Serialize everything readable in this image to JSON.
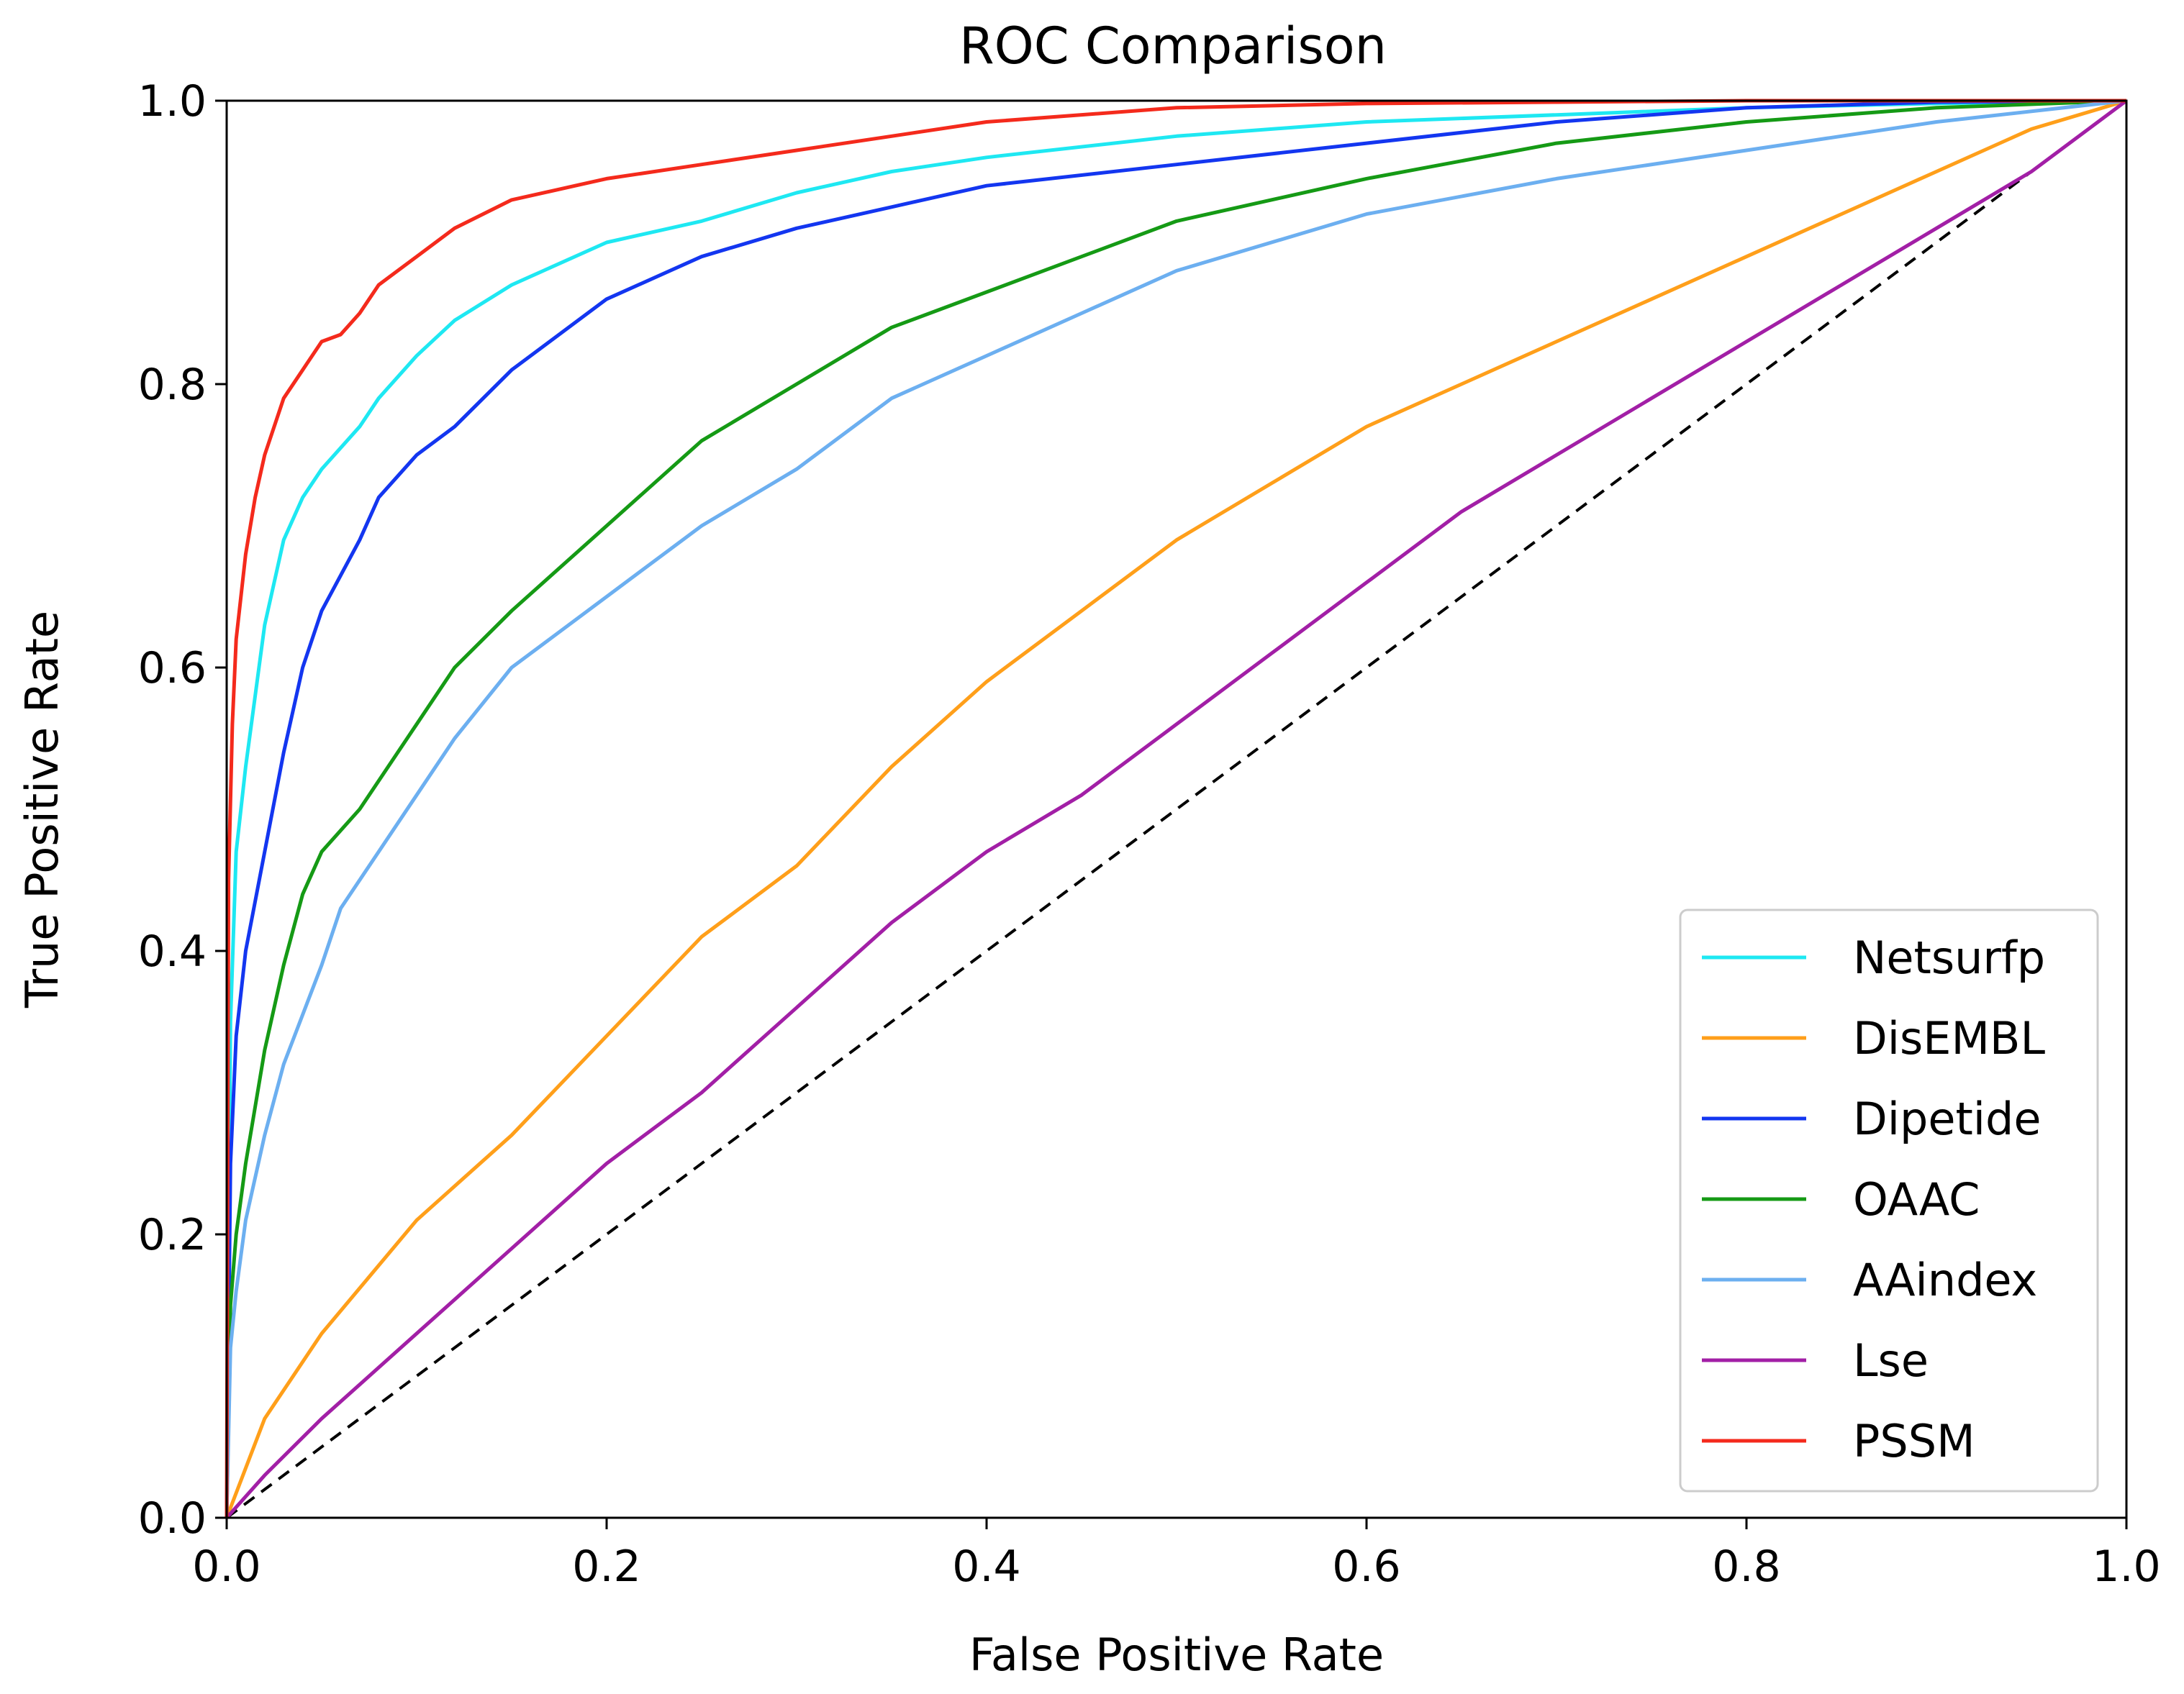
{
  "chart_data": {
    "type": "line",
    "title": "ROC Comparison",
    "xlabel": "False Positive Rate",
    "ylabel": "True Positive Rate",
    "xlim": [
      0,
      1
    ],
    "ylim": [
      0,
      1
    ],
    "xticks": [
      "0.0",
      "0.2",
      "0.4",
      "0.6",
      "0.8",
      "1.0"
    ],
    "yticks": [
      "0.0",
      "0.2",
      "0.4",
      "0.6",
      "0.8",
      "1.0"
    ],
    "grid": false,
    "legend_position": "lower-right",
    "diagonal": {
      "x": [
        0,
        1
      ],
      "y": [
        0,
        1
      ],
      "style": "dashed",
      "color": "#000000"
    },
    "series": [
      {
        "name": "Netsurfp",
        "color": "#1ee8f2",
        "x": [
          0,
          0.002,
          0.005,
          0.01,
          0.015,
          0.02,
          0.03,
          0.04,
          0.05,
          0.07,
          0.08,
          0.1,
          0.12,
          0.15,
          0.2,
          0.25,
          0.3,
          0.35,
          0.4,
          0.5,
          0.6,
          0.7,
          0.8,
          0.9,
          1.0
        ],
        "y": [
          0,
          0.35,
          0.47,
          0.53,
          0.58,
          0.63,
          0.69,
          0.72,
          0.74,
          0.77,
          0.79,
          0.82,
          0.845,
          0.87,
          0.9,
          0.915,
          0.935,
          0.95,
          0.96,
          0.975,
          0.985,
          0.99,
          0.995,
          0.998,
          1.0
        ]
      },
      {
        "name": "DisEMBL",
        "color": "#ff9f1a",
        "x": [
          0,
          0.02,
          0.05,
          0.1,
          0.15,
          0.2,
          0.25,
          0.3,
          0.35,
          0.4,
          0.45,
          0.5,
          0.55,
          0.6,
          0.65,
          0.7,
          0.75,
          0.8,
          0.85,
          0.9,
          0.95,
          1.0
        ],
        "y": [
          0,
          0.07,
          0.13,
          0.21,
          0.27,
          0.34,
          0.41,
          0.46,
          0.53,
          0.59,
          0.64,
          0.69,
          0.73,
          0.77,
          0.8,
          0.83,
          0.86,
          0.89,
          0.92,
          0.95,
          0.98,
          1.0
        ]
      },
      {
        "name": "Dipetide",
        "color": "#1336f0",
        "x": [
          0,
          0.002,
          0.005,
          0.01,
          0.02,
          0.03,
          0.04,
          0.05,
          0.07,
          0.08,
          0.1,
          0.12,
          0.15,
          0.2,
          0.25,
          0.3,
          0.35,
          0.4,
          0.5,
          0.6,
          0.7,
          0.8,
          0.9,
          1.0
        ],
        "y": [
          0,
          0.25,
          0.34,
          0.4,
          0.47,
          0.54,
          0.6,
          0.64,
          0.69,
          0.72,
          0.75,
          0.77,
          0.81,
          0.86,
          0.89,
          0.91,
          0.925,
          0.94,
          0.955,
          0.97,
          0.985,
          0.995,
          0.999,
          1.0
        ]
      },
      {
        "name": "OAAC",
        "color": "#159a15",
        "x": [
          0,
          0.002,
          0.005,
          0.01,
          0.02,
          0.03,
          0.04,
          0.05,
          0.07,
          0.1,
          0.12,
          0.15,
          0.2,
          0.25,
          0.3,
          0.35,
          0.4,
          0.45,
          0.5,
          0.6,
          0.7,
          0.8,
          0.9,
          1.0
        ],
        "y": [
          0,
          0.15,
          0.2,
          0.25,
          0.33,
          0.39,
          0.44,
          0.47,
          0.5,
          0.56,
          0.6,
          0.64,
          0.7,
          0.76,
          0.8,
          0.84,
          0.865,
          0.89,
          0.915,
          0.945,
          0.97,
          0.985,
          0.995,
          1.0
        ]
      },
      {
        "name": "AAindex",
        "color": "#6caff0",
        "x": [
          0,
          0.002,
          0.005,
          0.01,
          0.02,
          0.03,
          0.05,
          0.06,
          0.08,
          0.1,
          0.12,
          0.15,
          0.2,
          0.25,
          0.3,
          0.35,
          0.4,
          0.45,
          0.5,
          0.6,
          0.7,
          0.8,
          0.9,
          1.0
        ],
        "y": [
          0,
          0.12,
          0.16,
          0.21,
          0.27,
          0.32,
          0.39,
          0.43,
          0.47,
          0.51,
          0.55,
          0.6,
          0.65,
          0.7,
          0.74,
          0.79,
          0.82,
          0.85,
          0.88,
          0.92,
          0.945,
          0.965,
          0.985,
          1.0
        ]
      },
      {
        "name": "Lse",
        "color": "#a21fa6",
        "x": [
          0,
          0.02,
          0.05,
          0.1,
          0.15,
          0.2,
          0.25,
          0.3,
          0.35,
          0.4,
          0.45,
          0.5,
          0.55,
          0.6,
          0.65,
          0.7,
          0.75,
          0.8,
          0.85,
          0.9,
          0.95,
          1.0
        ],
        "y": [
          0,
          0.03,
          0.07,
          0.13,
          0.19,
          0.25,
          0.3,
          0.36,
          0.42,
          0.47,
          0.51,
          0.56,
          0.61,
          0.66,
          0.71,
          0.75,
          0.79,
          0.83,
          0.87,
          0.91,
          0.95,
          1.0
        ]
      },
      {
        "name": "PSSM",
        "color": "#f42a1c",
        "x": [
          0,
          0.001,
          0.003,
          0.005,
          0.01,
          0.015,
          0.02,
          0.03,
          0.04,
          0.05,
          0.06,
          0.07,
          0.08,
          0.1,
          0.12,
          0.15,
          0.2,
          0.25,
          0.3,
          0.35,
          0.4,
          0.5,
          0.6,
          0.7,
          0.8,
          1.0
        ],
        "y": [
          0,
          0.45,
          0.56,
          0.62,
          0.68,
          0.72,
          0.75,
          0.79,
          0.81,
          0.83,
          0.835,
          0.85,
          0.87,
          0.89,
          0.91,
          0.93,
          0.945,
          0.955,
          0.965,
          0.975,
          0.985,
          0.995,
          0.998,
          0.999,
          1.0,
          1.0
        ]
      }
    ]
  }
}
